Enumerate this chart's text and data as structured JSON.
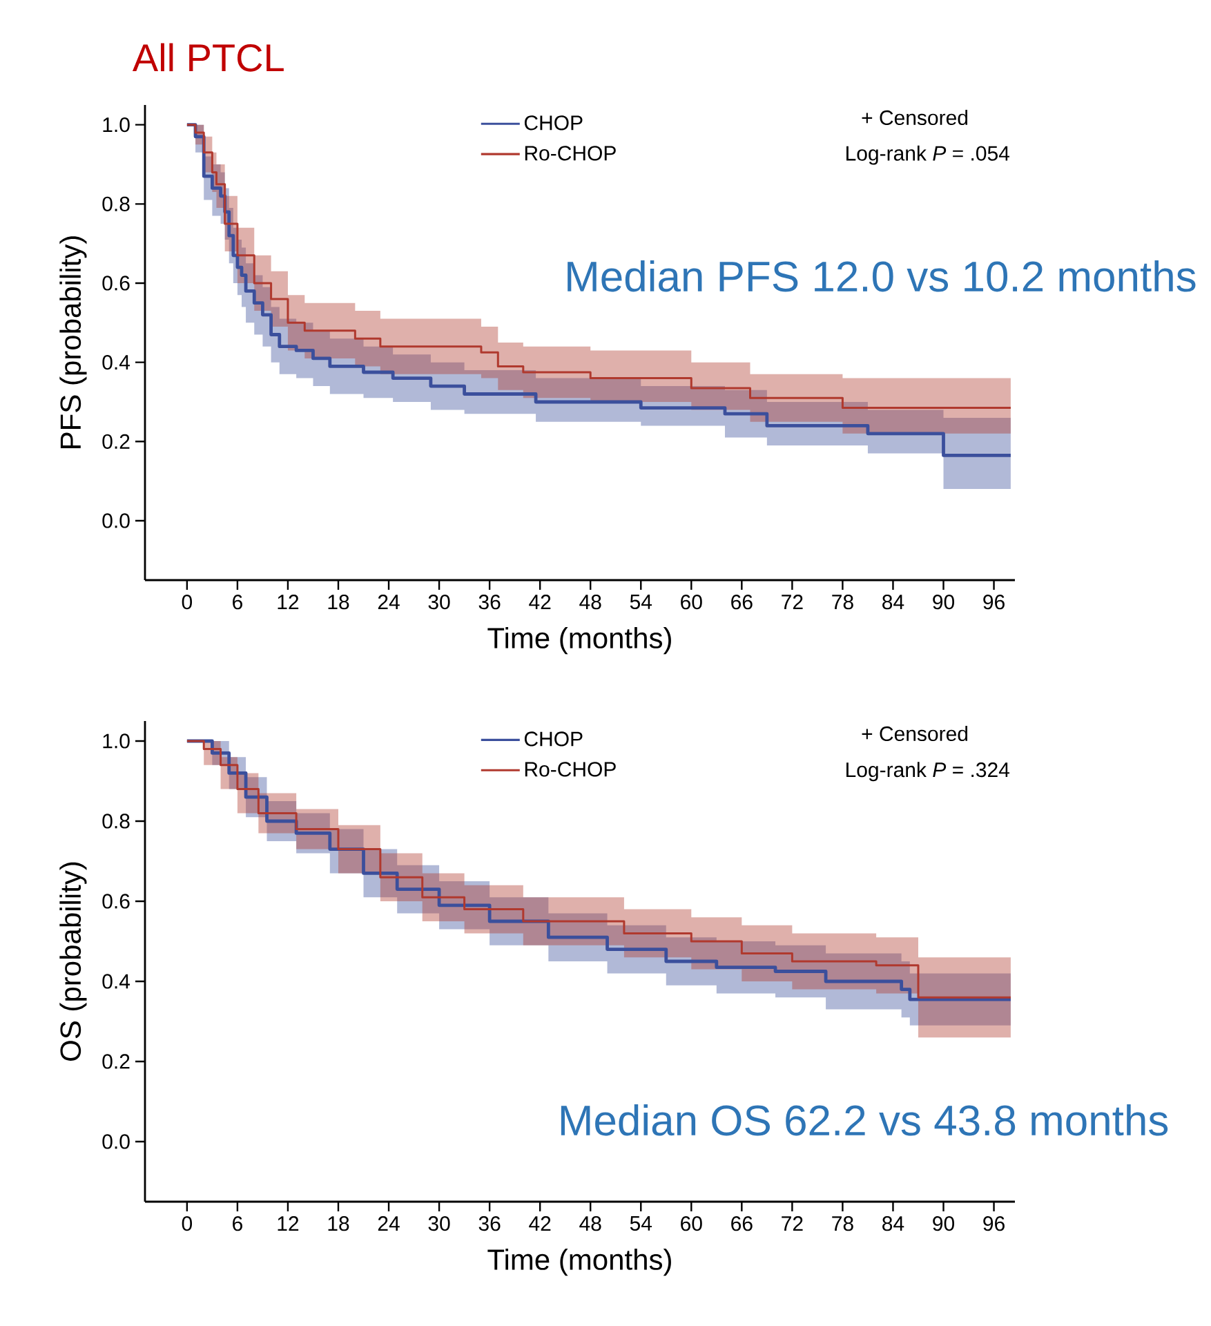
{
  "chart_data": [
    {
      "type": "step",
      "title": "All PTCL",
      "xlabel": "Time (months)",
      "ylabel": "PFS (probability)",
      "legend": "top",
      "line_style": "solid",
      "annotations": [
        "+ Censored",
        "Log-rank *P* = .054",
        "Median PFS 12.0 vs 10.2 months"
      ],
      "xlim": [
        -5,
        98.5
      ],
      "ylim": [
        -0.15,
        1.05
      ],
      "xticks": [
        0,
        6,
        12,
        18,
        24,
        30,
        36,
        42,
        48,
        54,
        60,
        66,
        72,
        78,
        84,
        90,
        96
      ],
      "yticks": [
        {
          "value": 0,
          "label": "0.0"
        },
        {
          "value": 0.2,
          "label": "0.2"
        },
        {
          "value": 0.4,
          "label": "0.4"
        },
        {
          "value": 0.6,
          "label": "0.6"
        },
        {
          "value": 0.8,
          "label": "0.8"
        },
        {
          "value": 1,
          "label": "1.0"
        }
      ],
      "series": [
        {
          "name": "CHOP",
          "color": "#3b4f9c",
          "x": [
            0,
            1,
            2,
            3,
            4,
            4.5,
            5,
            5.5,
            6,
            6.5,
            7,
            8,
            9,
            10,
            11,
            13,
            15,
            17,
            21,
            24.5,
            29,
            33,
            41.5,
            54,
            64,
            69,
            81,
            90,
            98
          ],
          "values": [
            1.0,
            0.97,
            0.87,
            0.84,
            0.82,
            0.78,
            0.72,
            0.67,
            0.64,
            0.62,
            0.58,
            0.55,
            0.52,
            0.47,
            0.44,
            0.43,
            0.41,
            0.39,
            0.375,
            0.36,
            0.34,
            0.32,
            0.3,
            0.285,
            0.27,
            0.24,
            0.22,
            0.165,
            0.165
          ],
          "lower": [
            1.0,
            0.93,
            0.81,
            0.77,
            0.75,
            0.71,
            0.65,
            0.6,
            0.57,
            0.54,
            0.5,
            0.47,
            0.44,
            0.4,
            0.37,
            0.36,
            0.34,
            0.32,
            0.31,
            0.3,
            0.28,
            0.27,
            0.25,
            0.24,
            0.21,
            0.19,
            0.17,
            0.08,
            0.08
          ],
          "upper": [
            1.0,
            1.0,
            0.92,
            0.9,
            0.88,
            0.84,
            0.79,
            0.74,
            0.71,
            0.69,
            0.65,
            0.62,
            0.59,
            0.54,
            0.51,
            0.5,
            0.48,
            0.46,
            0.44,
            0.42,
            0.4,
            0.38,
            0.36,
            0.34,
            0.33,
            0.3,
            0.28,
            0.26,
            0.26
          ]
        },
        {
          "name": "Ro-CHOP",
          "color": "#b0392e",
          "x": [
            0,
            1,
            2,
            3,
            3.5,
            4.5,
            6,
            8,
            10,
            12,
            14,
            20,
            23,
            35,
            37,
            40,
            48,
            60,
            67,
            78,
            98
          ],
          "values": [
            1.0,
            0.98,
            0.93,
            0.88,
            0.85,
            0.75,
            0.67,
            0.6,
            0.56,
            0.5,
            0.48,
            0.46,
            0.44,
            0.425,
            0.39,
            0.375,
            0.36,
            0.335,
            0.31,
            0.285,
            0.285
          ],
          "lower": [
            1.0,
            0.95,
            0.88,
            0.83,
            0.79,
            0.68,
            0.6,
            0.53,
            0.49,
            0.43,
            0.41,
            0.39,
            0.37,
            0.36,
            0.33,
            0.31,
            0.3,
            0.28,
            0.25,
            0.22,
            0.22
          ],
          "upper": [
            1.0,
            1.0,
            0.97,
            0.93,
            0.9,
            0.82,
            0.74,
            0.67,
            0.63,
            0.57,
            0.55,
            0.53,
            0.51,
            0.49,
            0.45,
            0.44,
            0.43,
            0.4,
            0.37,
            0.36,
            0.36
          ]
        }
      ]
    },
    {
      "type": "step",
      "xlabel": "Time (months)",
      "ylabel": "OS (probability)",
      "legend": "top",
      "line_style": "solid",
      "annotations": [
        "+ Censored",
        "Log-rank *P* = .324",
        "Median OS 62.2 vs 43.8 months"
      ],
      "xlim": [
        -5,
        98.5
      ],
      "ylim": [
        -0.15,
        1.05
      ],
      "xticks": [
        0,
        6,
        12,
        18,
        24,
        30,
        36,
        42,
        48,
        54,
        60,
        66,
        72,
        78,
        84,
        90,
        96
      ],
      "yticks": [
        {
          "value": 0,
          "label": "0.0"
        },
        {
          "value": 0.2,
          "label": "0.2"
        },
        {
          "value": 0.4,
          "label": "0.4"
        },
        {
          "value": 0.6,
          "label": "0.6"
        },
        {
          "value": 0.8,
          "label": "0.8"
        },
        {
          "value": 1,
          "label": "1.0"
        }
      ],
      "series": [
        {
          "name": "CHOP",
          "color": "#3b4f9c",
          "x": [
            0,
            3,
            5,
            7,
            9.5,
            13,
            17,
            21,
            25,
            30,
            36,
            43,
            50,
            57,
            63,
            70,
            76,
            85,
            86,
            98
          ],
          "values": [
            1.0,
            0.97,
            0.92,
            0.86,
            0.8,
            0.77,
            0.73,
            0.67,
            0.63,
            0.59,
            0.55,
            0.51,
            0.48,
            0.45,
            0.435,
            0.425,
            0.4,
            0.38,
            0.355,
            0.355
          ],
          "lower": [
            1.0,
            0.94,
            0.88,
            0.81,
            0.75,
            0.72,
            0.67,
            0.61,
            0.57,
            0.53,
            0.49,
            0.45,
            0.42,
            0.39,
            0.37,
            0.36,
            0.33,
            0.31,
            0.29,
            0.29
          ],
          "upper": [
            1.0,
            1.0,
            0.96,
            0.91,
            0.85,
            0.82,
            0.78,
            0.73,
            0.69,
            0.65,
            0.61,
            0.57,
            0.54,
            0.51,
            0.5,
            0.49,
            0.47,
            0.45,
            0.42,
            0.42
          ]
        },
        {
          "name": "Ro-CHOP",
          "color": "#b0392e",
          "x": [
            0,
            2,
            4,
            6,
            8.5,
            13,
            18,
            23,
            28,
            33,
            40,
            52,
            60,
            66,
            72,
            82,
            87,
            98
          ],
          "values": [
            1.0,
            0.98,
            0.94,
            0.88,
            0.82,
            0.78,
            0.73,
            0.66,
            0.61,
            0.58,
            0.55,
            0.52,
            0.5,
            0.47,
            0.45,
            0.44,
            0.36,
            0.36
          ],
          "lower": [
            1.0,
            0.94,
            0.88,
            0.82,
            0.77,
            0.73,
            0.67,
            0.6,
            0.55,
            0.52,
            0.49,
            0.46,
            0.43,
            0.4,
            0.38,
            0.37,
            0.26,
            0.26
          ],
          "upper": [
            1.0,
            1.0,
            0.96,
            0.92,
            0.87,
            0.83,
            0.79,
            0.72,
            0.67,
            0.64,
            0.61,
            0.58,
            0.56,
            0.54,
            0.52,
            0.51,
            0.46,
            0.46
          ]
        }
      ]
    }
  ]
}
